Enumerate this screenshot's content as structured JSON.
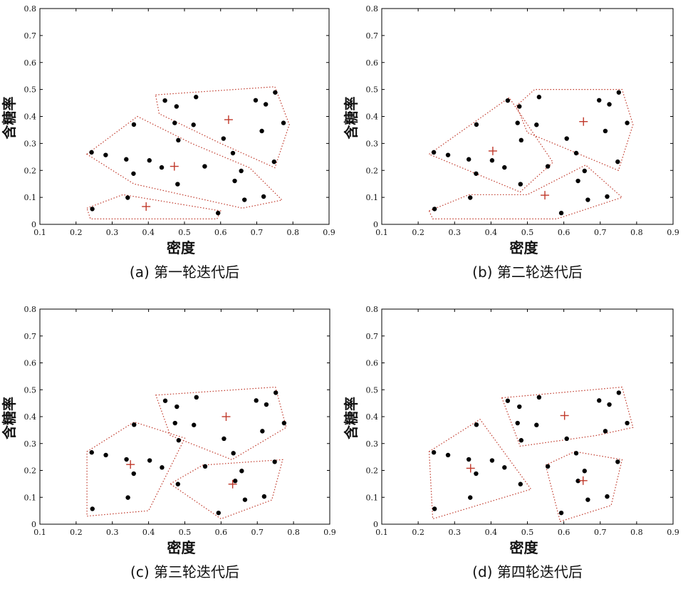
{
  "chart_data": [
    {
      "type": "scatter",
      "caption": "(a) 第一轮迭代后",
      "xlabel": "密度",
      "ylabel": "含糖率",
      "xlim": [
        0.1,
        0.9
      ],
      "ylim": [
        0,
        0.8
      ],
      "xticks": [
        "0.1",
        "0.2",
        "0.3",
        "0.4",
        "0.5",
        "0.6",
        "0.7",
        "0.8",
        "0.9"
      ],
      "yticks": [
        "0",
        "0.1",
        "0.2",
        "0.3",
        "0.4",
        "0.5",
        "0.6",
        "0.7",
        "0.8"
      ],
      "points": [
        [
          0.697,
          0.46
        ],
        [
          0.774,
          0.376
        ],
        [
          0.634,
          0.264
        ],
        [
          0.608,
          0.318
        ],
        [
          0.556,
          0.215
        ],
        [
          0.403,
          0.237
        ],
        [
          0.481,
          0.149
        ],
        [
          0.437,
          0.211
        ],
        [
          0.666,
          0.091
        ],
        [
          0.243,
          0.267
        ],
        [
          0.245,
          0.057
        ],
        [
          0.343,
          0.099
        ],
        [
          0.639,
          0.161
        ],
        [
          0.657,
          0.198
        ],
        [
          0.36,
          0.37
        ],
        [
          0.593,
          0.042
        ],
        [
          0.719,
          0.103
        ],
        [
          0.359,
          0.188
        ],
        [
          0.339,
          0.241
        ],
        [
          0.282,
          0.257
        ],
        [
          0.748,
          0.232
        ],
        [
          0.714,
          0.346
        ],
        [
          0.483,
          0.312
        ],
        [
          0.478,
          0.437
        ],
        [
          0.525,
          0.369
        ],
        [
          0.751,
          0.489
        ],
        [
          0.532,
          0.472
        ],
        [
          0.473,
          0.376
        ],
        [
          0.725,
          0.445
        ],
        [
          0.446,
          0.459
        ]
      ],
      "centers": [
        [
          0.622,
          0.388
        ],
        [
          0.472,
          0.215
        ],
        [
          0.394,
          0.066
        ]
      ],
      "clusters": [
        [
          [
            0.42,
            0.48
          ],
          [
            0.75,
            0.51
          ],
          [
            0.79,
            0.37
          ],
          [
            0.75,
            0.21
          ],
          [
            0.6,
            0.3
          ],
          [
            0.43,
            0.41
          ]
        ],
        [
          [
            0.23,
            0.26
          ],
          [
            0.37,
            0.4
          ],
          [
            0.52,
            0.3
          ],
          [
            0.68,
            0.21
          ],
          [
            0.77,
            0.09
          ],
          [
            0.66,
            0.06
          ],
          [
            0.36,
            0.15
          ]
        ],
        [
          [
            0.23,
            0.06
          ],
          [
            0.33,
            0.11
          ],
          [
            0.6,
            0.05
          ],
          [
            0.59,
            0.02
          ],
          [
            0.24,
            0.02
          ]
        ]
      ]
    },
    {
      "type": "scatter",
      "caption": "(b) 第二轮迭代后",
      "xlabel": "密度",
      "ylabel": "含糖率",
      "xlim": [
        0.1,
        0.9
      ],
      "ylim": [
        0,
        0.8
      ],
      "xticks": [
        "0.1",
        "0.2",
        "0.3",
        "0.4",
        "0.5",
        "0.6",
        "0.7",
        "0.8",
        "0.9"
      ],
      "yticks": [
        "0",
        "0.1",
        "0.2",
        "0.3",
        "0.4",
        "0.5",
        "0.6",
        "0.7",
        "0.8"
      ],
      "points": [
        [
          0.697,
          0.46
        ],
        [
          0.774,
          0.376
        ],
        [
          0.634,
          0.264
        ],
        [
          0.608,
          0.318
        ],
        [
          0.556,
          0.215
        ],
        [
          0.403,
          0.237
        ],
        [
          0.481,
          0.149
        ],
        [
          0.437,
          0.211
        ],
        [
          0.666,
          0.091
        ],
        [
          0.243,
          0.267
        ],
        [
          0.245,
          0.057
        ],
        [
          0.343,
          0.099
        ],
        [
          0.639,
          0.161
        ],
        [
          0.657,
          0.198
        ],
        [
          0.36,
          0.37
        ],
        [
          0.593,
          0.042
        ],
        [
          0.719,
          0.103
        ],
        [
          0.359,
          0.188
        ],
        [
          0.339,
          0.241
        ],
        [
          0.282,
          0.257
        ],
        [
          0.748,
          0.232
        ],
        [
          0.714,
          0.346
        ],
        [
          0.483,
          0.312
        ],
        [
          0.478,
          0.437
        ],
        [
          0.525,
          0.369
        ],
        [
          0.751,
          0.489
        ],
        [
          0.532,
          0.472
        ],
        [
          0.473,
          0.376
        ],
        [
          0.725,
          0.445
        ],
        [
          0.446,
          0.459
        ]
      ],
      "centers": [
        [
          0.654,
          0.381
        ],
        [
          0.405,
          0.272
        ],
        [
          0.548,
          0.108
        ]
      ],
      "clusters": [
        [
          [
            0.23,
            0.26
          ],
          [
            0.45,
            0.47
          ],
          [
            0.57,
            0.23
          ],
          [
            0.48,
            0.12
          ]
        ],
        [
          [
            0.47,
            0.44
          ],
          [
            0.52,
            0.5
          ],
          [
            0.76,
            0.5
          ],
          [
            0.79,
            0.37
          ],
          [
            0.75,
            0.2
          ],
          [
            0.5,
            0.34
          ]
        ],
        [
          [
            0.23,
            0.05
          ],
          [
            0.34,
            0.11
          ],
          [
            0.5,
            0.11
          ],
          [
            0.66,
            0.22
          ],
          [
            0.76,
            0.1
          ],
          [
            0.58,
            0.02
          ],
          [
            0.24,
            0.02
          ]
        ]
      ]
    },
    {
      "type": "scatter",
      "caption": "(c) 第三轮迭代后",
      "xlabel": "密度",
      "ylabel": "含糖率",
      "xlim": [
        0.1,
        0.9
      ],
      "ylim": [
        0,
        0.8
      ],
      "xticks": [
        "0.1",
        "0.2",
        "0.3",
        "0.4",
        "0.5",
        "0.6",
        "0.7",
        "0.8",
        "0.9"
      ],
      "yticks": [
        "0",
        "0.1",
        "0.2",
        "0.3",
        "0.4",
        "0.5",
        "0.6",
        "0.7",
        "0.8"
      ],
      "points": [
        [
          0.697,
          0.46
        ],
        [
          0.774,
          0.376
        ],
        [
          0.634,
          0.264
        ],
        [
          0.608,
          0.318
        ],
        [
          0.556,
          0.215
        ],
        [
          0.403,
          0.237
        ],
        [
          0.481,
          0.149
        ],
        [
          0.437,
          0.211
        ],
        [
          0.666,
          0.091
        ],
        [
          0.243,
          0.267
        ],
        [
          0.245,
          0.057
        ],
        [
          0.343,
          0.099
        ],
        [
          0.639,
          0.161
        ],
        [
          0.657,
          0.198
        ],
        [
          0.36,
          0.37
        ],
        [
          0.593,
          0.042
        ],
        [
          0.719,
          0.103
        ],
        [
          0.359,
          0.188
        ],
        [
          0.339,
          0.241
        ],
        [
          0.282,
          0.257
        ],
        [
          0.748,
          0.232
        ],
        [
          0.714,
          0.346
        ],
        [
          0.483,
          0.312
        ],
        [
          0.478,
          0.437
        ],
        [
          0.525,
          0.369
        ],
        [
          0.751,
          0.489
        ],
        [
          0.532,
          0.472
        ],
        [
          0.473,
          0.376
        ],
        [
          0.725,
          0.445
        ],
        [
          0.446,
          0.459
        ]
      ],
      "centers": [
        [
          0.614,
          0.4
        ],
        [
          0.35,
          0.222
        ],
        [
          0.632,
          0.149
        ]
      ],
      "clusters": [
        [
          [
            0.42,
            0.48
          ],
          [
            0.75,
            0.51
          ],
          [
            0.78,
            0.36
          ],
          [
            0.63,
            0.24
          ],
          [
            0.46,
            0.33
          ]
        ],
        [
          [
            0.23,
            0.27
          ],
          [
            0.36,
            0.38
          ],
          [
            0.5,
            0.32
          ],
          [
            0.4,
            0.05
          ],
          [
            0.23,
            0.03
          ]
        ],
        [
          [
            0.46,
            0.15
          ],
          [
            0.55,
            0.22
          ],
          [
            0.77,
            0.24
          ],
          [
            0.74,
            0.09
          ],
          [
            0.6,
            0.02
          ]
        ]
      ]
    },
    {
      "type": "scatter",
      "caption": "(d) 第四轮迭代后",
      "xlabel": "密度",
      "ylabel": "含糖率",
      "xlim": [
        0.1,
        0.9
      ],
      "ylim": [
        0,
        0.8
      ],
      "xticks": [
        "0.1",
        "0.2",
        "0.3",
        "0.4",
        "0.5",
        "0.6",
        "0.7",
        "0.8",
        "0.9"
      ],
      "yticks": [
        "0",
        "0.1",
        "0.2",
        "0.3",
        "0.4",
        "0.5",
        "0.6",
        "0.7",
        "0.8"
      ],
      "points": [
        [
          0.697,
          0.46
        ],
        [
          0.774,
          0.376
        ],
        [
          0.634,
          0.264
        ],
        [
          0.608,
          0.318
        ],
        [
          0.556,
          0.215
        ],
        [
          0.403,
          0.237
        ],
        [
          0.481,
          0.149
        ],
        [
          0.437,
          0.211
        ],
        [
          0.666,
          0.091
        ],
        [
          0.243,
          0.267
        ],
        [
          0.245,
          0.057
        ],
        [
          0.343,
          0.099
        ],
        [
          0.639,
          0.161
        ],
        [
          0.657,
          0.198
        ],
        [
          0.36,
          0.37
        ],
        [
          0.593,
          0.042
        ],
        [
          0.719,
          0.103
        ],
        [
          0.359,
          0.188
        ],
        [
          0.339,
          0.241
        ],
        [
          0.282,
          0.257
        ],
        [
          0.748,
          0.232
        ],
        [
          0.714,
          0.346
        ],
        [
          0.483,
          0.312
        ],
        [
          0.478,
          0.437
        ],
        [
          0.525,
          0.369
        ],
        [
          0.751,
          0.489
        ],
        [
          0.532,
          0.472
        ],
        [
          0.473,
          0.376
        ],
        [
          0.725,
          0.445
        ],
        [
          0.446,
          0.459
        ]
      ],
      "centers": [
        [
          0.602,
          0.404
        ],
        [
          0.344,
          0.208
        ],
        [
          0.653,
          0.162
        ]
      ],
      "clusters": [
        [
          [
            0.43,
            0.47
          ],
          [
            0.76,
            0.51
          ],
          [
            0.79,
            0.36
          ],
          [
            0.69,
            0.33
          ],
          [
            0.48,
            0.29
          ]
        ],
        [
          [
            0.23,
            0.27
          ],
          [
            0.37,
            0.39
          ],
          [
            0.51,
            0.13
          ],
          [
            0.24,
            0.02
          ]
        ],
        [
          [
            0.55,
            0.22
          ],
          [
            0.63,
            0.27
          ],
          [
            0.76,
            0.24
          ],
          [
            0.73,
            0.07
          ],
          [
            0.59,
            0.01
          ]
        ]
      ]
    }
  ]
}
